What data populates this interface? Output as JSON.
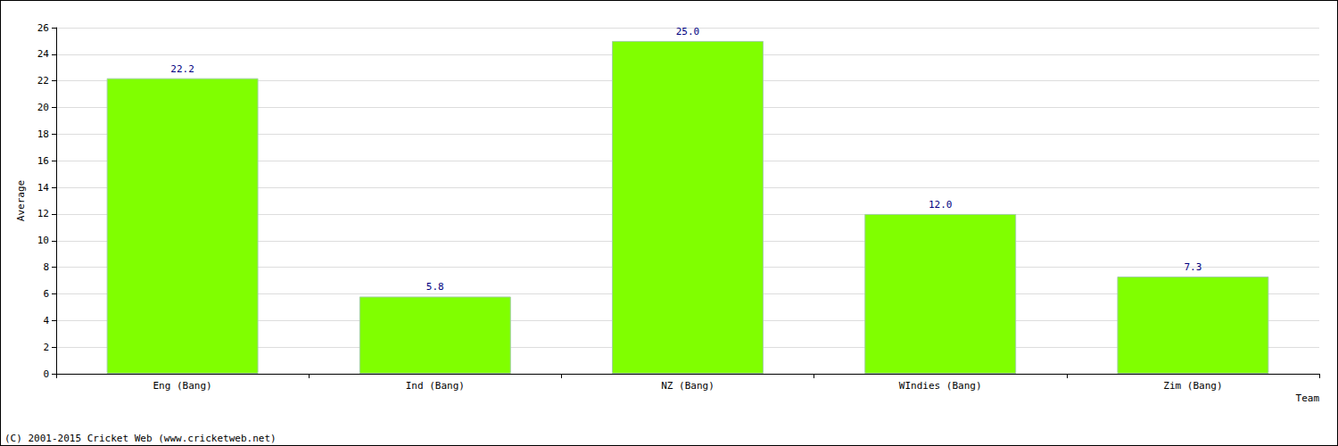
{
  "chart_data": {
    "type": "bar",
    "x_label": "Team",
    "y_label": "Average",
    "annotations": [
      "(C) 2001-2015 Cricket Web (www.cricketweb.net)"
    ],
    "categories": [
      "Eng (Bang)",
      "Ind (Bang)",
      "NZ (Bang)",
      "WIndies (Bang)",
      "Zim (Bang)"
    ],
    "values": [
      22.2,
      5.8,
      25.0,
      12.0,
      7.3
    ],
    "value_labels": [
      "22.2",
      "5.8",
      "25.0",
      "12.0",
      "7.3"
    ],
    "color": "#80ff00",
    "ylim": [
      0,
      26
    ],
    "yticks": [
      0,
      2,
      4,
      6,
      8,
      10,
      12,
      14,
      16,
      18,
      20,
      22,
      24,
      26
    ],
    "grid": true,
    "data_labels": true
  }
}
